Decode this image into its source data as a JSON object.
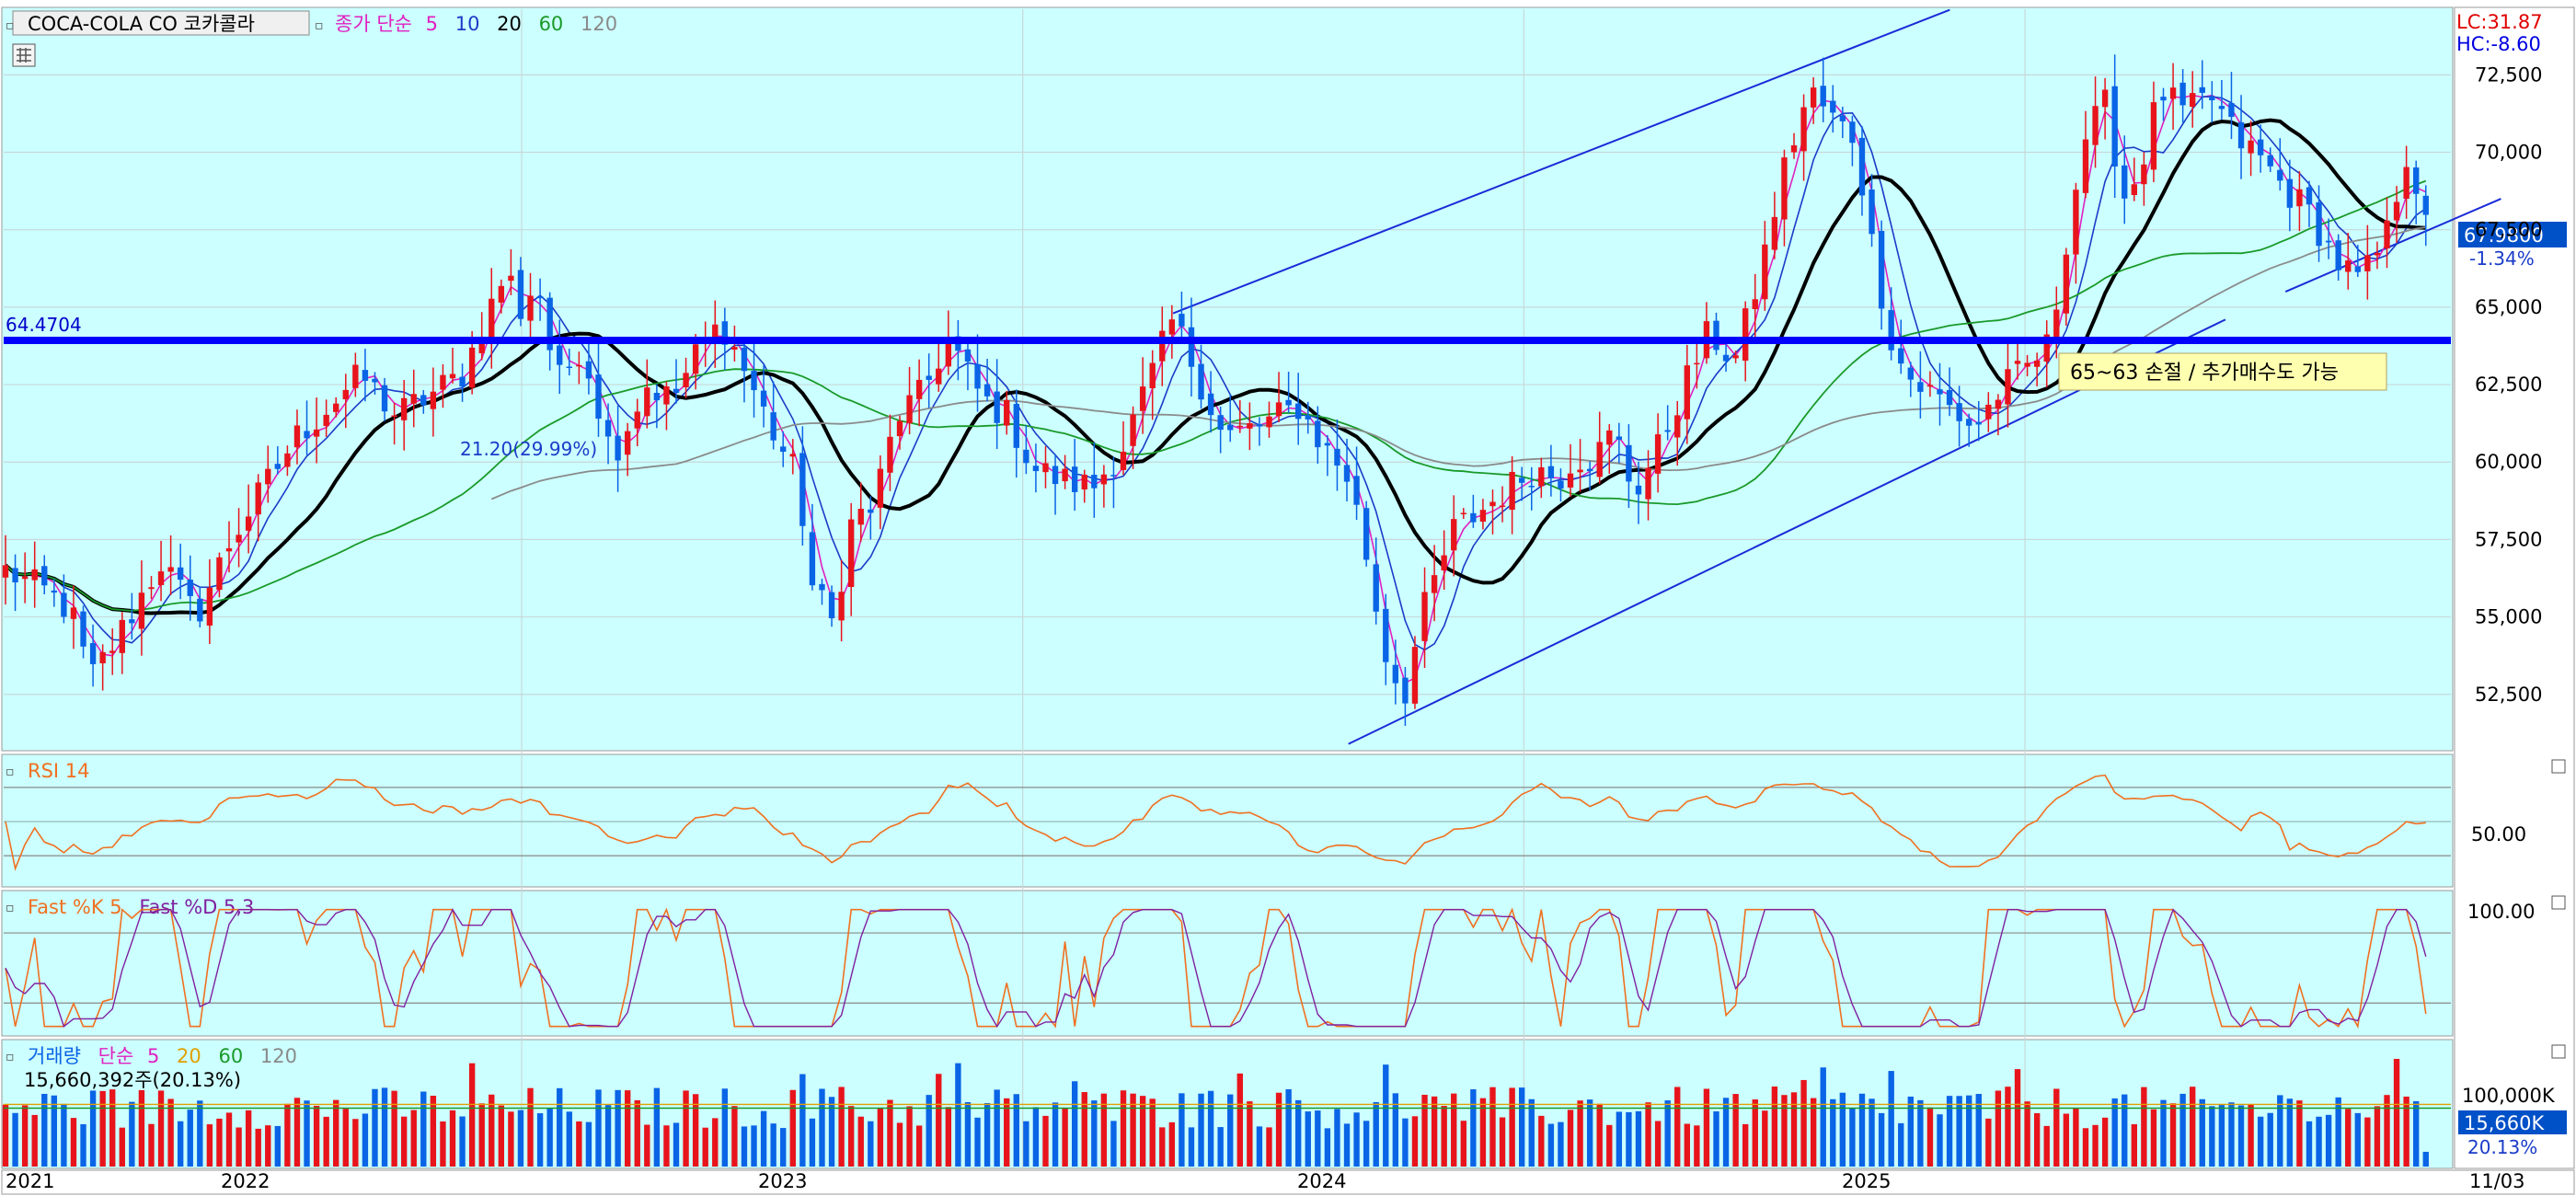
{
  "header": {
    "stock_name": "COCA-COLA CO  코카콜라",
    "ma_label": "종가 단순",
    "ma_periods": [
      "5",
      "10",
      "20",
      "60",
      "120"
    ],
    "lc": "LC:31.87",
    "hc": "HC:-8.60"
  },
  "price_panel": {
    "resistance_label": "64.4704",
    "current_price": "67.9800",
    "change_pct": "-1.34%",
    "low_annotation": "21.20(29.99%)",
    "note": "65~63 손절 / 추가매수도 가능"
  },
  "rsi_panel": {
    "title": "RSI 14"
  },
  "stoch_panel": {
    "title_k": "Fast %K 5",
    "title_d": "Fast %D 5,3"
  },
  "volume_panel": {
    "title": "거래량",
    "ma_label": "단순",
    "ma_periods": [
      "5",
      "20",
      "60",
      "120"
    ],
    "volume_text": "15,660,392주(20.13%)",
    "current_label": "15,660K",
    "pct_label": "20.13%"
  },
  "x_axis": {
    "labels": [
      "2021",
      "2022",
      "2023",
      "2024",
      "2025"
    ],
    "right_label": "11/03"
  },
  "colors": {
    "background": "#ccffff",
    "up": "#e8141c",
    "down": "#0a64e6",
    "resistance": "#0000ff",
    "ma5": "#e020c0",
    "ma10": "#1a3cc8",
    "ma20": "#000000",
    "ma60": "#1a9a2a",
    "ma120": "#8a8a8a",
    "rsi": "#f07020",
    "stoch_k": "#f07020",
    "stoch_d": "#8020a0"
  },
  "chart_data": [
    {
      "type": "candlestick",
      "series_name": "COCA-COLA CO",
      "x_labels": [
        "2021",
        "2022",
        "2023",
        "2024",
        "2025"
      ],
      "y_ticks": [
        52500,
        55000,
        57500,
        60000,
        62500,
        65000,
        67500,
        70000,
        72500
      ],
      "y_tick_labels": [
        "52,500",
        "55,000",
        "57,500",
        "60,000",
        "62,500",
        "65,000",
        "67,500",
        "70,000",
        "72,500"
      ],
      "ylim": [
        50800,
        74500
      ],
      "resistance_level": 64.4704,
      "last_close": 67.98,
      "change_pct": -1.34,
      "trend_channel": {
        "upper": [
          [
            2023.3,
            64.8
          ],
          [
            2024.85,
            74.6
          ]
        ],
        "lower": [
          [
            2023.65,
            50.9
          ],
          [
            2025.4,
            64.6
          ]
        ],
        "upper_right": [
          [
            2025.52,
            65.5
          ],
          [
            2025.95,
            68.5
          ]
        ]
      },
      "anchor_closes": [
        [
          2020.97,
          56.5
        ],
        [
          2021.05,
          55.8
        ],
        [
          2021.1,
          55.2
        ],
        [
          2021.14,
          53.0
        ],
        [
          2021.2,
          54.5
        ],
        [
          2021.28,
          56.8
        ],
        [
          2021.35,
          55.0
        ],
        [
          2021.42,
          57.5
        ],
        [
          2021.55,
          60.8
        ],
        [
          2021.68,
          62.8
        ],
        [
          2021.75,
          61.5
        ],
        [
          2021.88,
          62.8
        ],
        [
          2021.97,
          66.2
        ],
        [
          2022.0,
          64.8
        ],
        [
          2022.03,
          66.0
        ],
        [
          2022.07,
          62.5
        ],
        [
          2022.12,
          63.8
        ],
        [
          2022.18,
          60.2
        ],
        [
          2022.25,
          62.5
        ],
        [
          2022.3,
          62.0
        ],
        [
          2022.35,
          63.5
        ],
        [
          2022.4,
          64.5
        ],
        [
          2022.45,
          62.8
        ],
        [
          2022.5,
          61.0
        ],
        [
          2022.55,
          59.5
        ],
        [
          2022.58,
          56.0
        ],
        [
          2022.62,
          54.8
        ],
        [
          2022.66,
          58.2
        ],
        [
          2022.7,
          58.5
        ],
        [
          2022.75,
          61.5
        ],
        [
          2022.8,
          62.2
        ],
        [
          2022.85,
          64.0
        ],
        [
          2022.92,
          62.0
        ],
        [
          2022.97,
          61.5
        ],
        [
          2023.02,
          59.8
        ],
        [
          2023.08,
          59.4
        ],
        [
          2023.14,
          59.2
        ],
        [
          2023.2,
          60.5
        ],
        [
          2023.25,
          62.5
        ],
        [
          2023.3,
          64.6
        ],
        [
          2023.35,
          62.8
        ],
        [
          2023.4,
          60.8
        ],
        [
          2023.48,
          61.2
        ],
        [
          2023.55,
          61.8
        ],
        [
          2023.6,
          60.5
        ],
        [
          2023.65,
          59.5
        ],
        [
          2023.68,
          57.5
        ],
        [
          2023.72,
          54.0
        ],
        [
          2023.76,
          52.4
        ],
        [
          2023.8,
          55.2
        ],
        [
          2023.86,
          57.8
        ],
        [
          2023.92,
          58.5
        ],
        [
          2023.98,
          59.3
        ],
        [
          2024.02,
          59.8
        ],
        [
          2024.07,
          59.5
        ],
        [
          2024.1,
          60.2
        ],
        [
          2024.14,
          60.1
        ],
        [
          2024.18,
          61.0
        ],
        [
          2024.22,
          59.0
        ],
        [
          2024.27,
          60.5
        ],
        [
          2024.32,
          62.5
        ],
        [
          2024.37,
          64.2
        ],
        [
          2024.42,
          63.2
        ],
        [
          2024.47,
          66.0
        ],
        [
          2024.52,
          69.5
        ],
        [
          2024.57,
          72.0
        ],
        [
          2024.62,
          71.0
        ],
        [
          2024.66,
          70.5
        ],
        [
          2024.7,
          66.5
        ],
        [
          2024.74,
          63.5
        ],
        [
          2024.78,
          62.5
        ],
        [
          2024.82,
          62.2
        ],
        [
          2024.86,
          61.6
        ],
        [
          2024.9,
          61.1
        ],
        [
          2024.95,
          62.3
        ],
        [
          2025.0,
          63.0
        ],
        [
          2025.05,
          63.8
        ],
        [
          2025.08,
          67.0
        ],
        [
          2025.12,
          70.5
        ],
        [
          2025.16,
          71.5
        ],
        [
          2025.2,
          68.5
        ],
        [
          2025.23,
          69.5
        ],
        [
          2025.27,
          72.0
        ],
        [
          2025.32,
          71.2
        ],
        [
          2025.37,
          71.8
        ],
        [
          2025.42,
          70.5
        ],
        [
          2025.47,
          69.8
        ],
        [
          2025.52,
          68.8
        ],
        [
          2025.57,
          68.0
        ],
        [
          2025.62,
          66.5
        ],
        [
          2025.67,
          65.8
        ],
        [
          2025.72,
          67.2
        ],
        [
          2025.76,
          70.0
        ],
        [
          2025.8,
          67.98
        ]
      ]
    },
    {
      "type": "line",
      "series_name": "RSI 14",
      "y_ticks": [
        50
      ],
      "y_tick_labels": [
        "50.00"
      ],
      "ylim": [
        15,
        85
      ],
      "guide_levels": [
        70,
        30
      ]
    },
    {
      "type": "line",
      "series_name": "Fast %K 5 / Fast %D 5,3",
      "y_ticks": [
        100
      ],
      "y_tick_labels": [
        "100.00"
      ],
      "ylim": [
        -5,
        110
      ],
      "guide_levels": [
        80,
        20
      ]
    },
    {
      "type": "bar",
      "series_name": "거래량",
      "y_ticks": [
        100000
      ],
      "y_tick_labels": [
        "100,000K"
      ],
      "ylim": [
        0,
        125000
      ],
      "last_volume": 15660392
    }
  ]
}
